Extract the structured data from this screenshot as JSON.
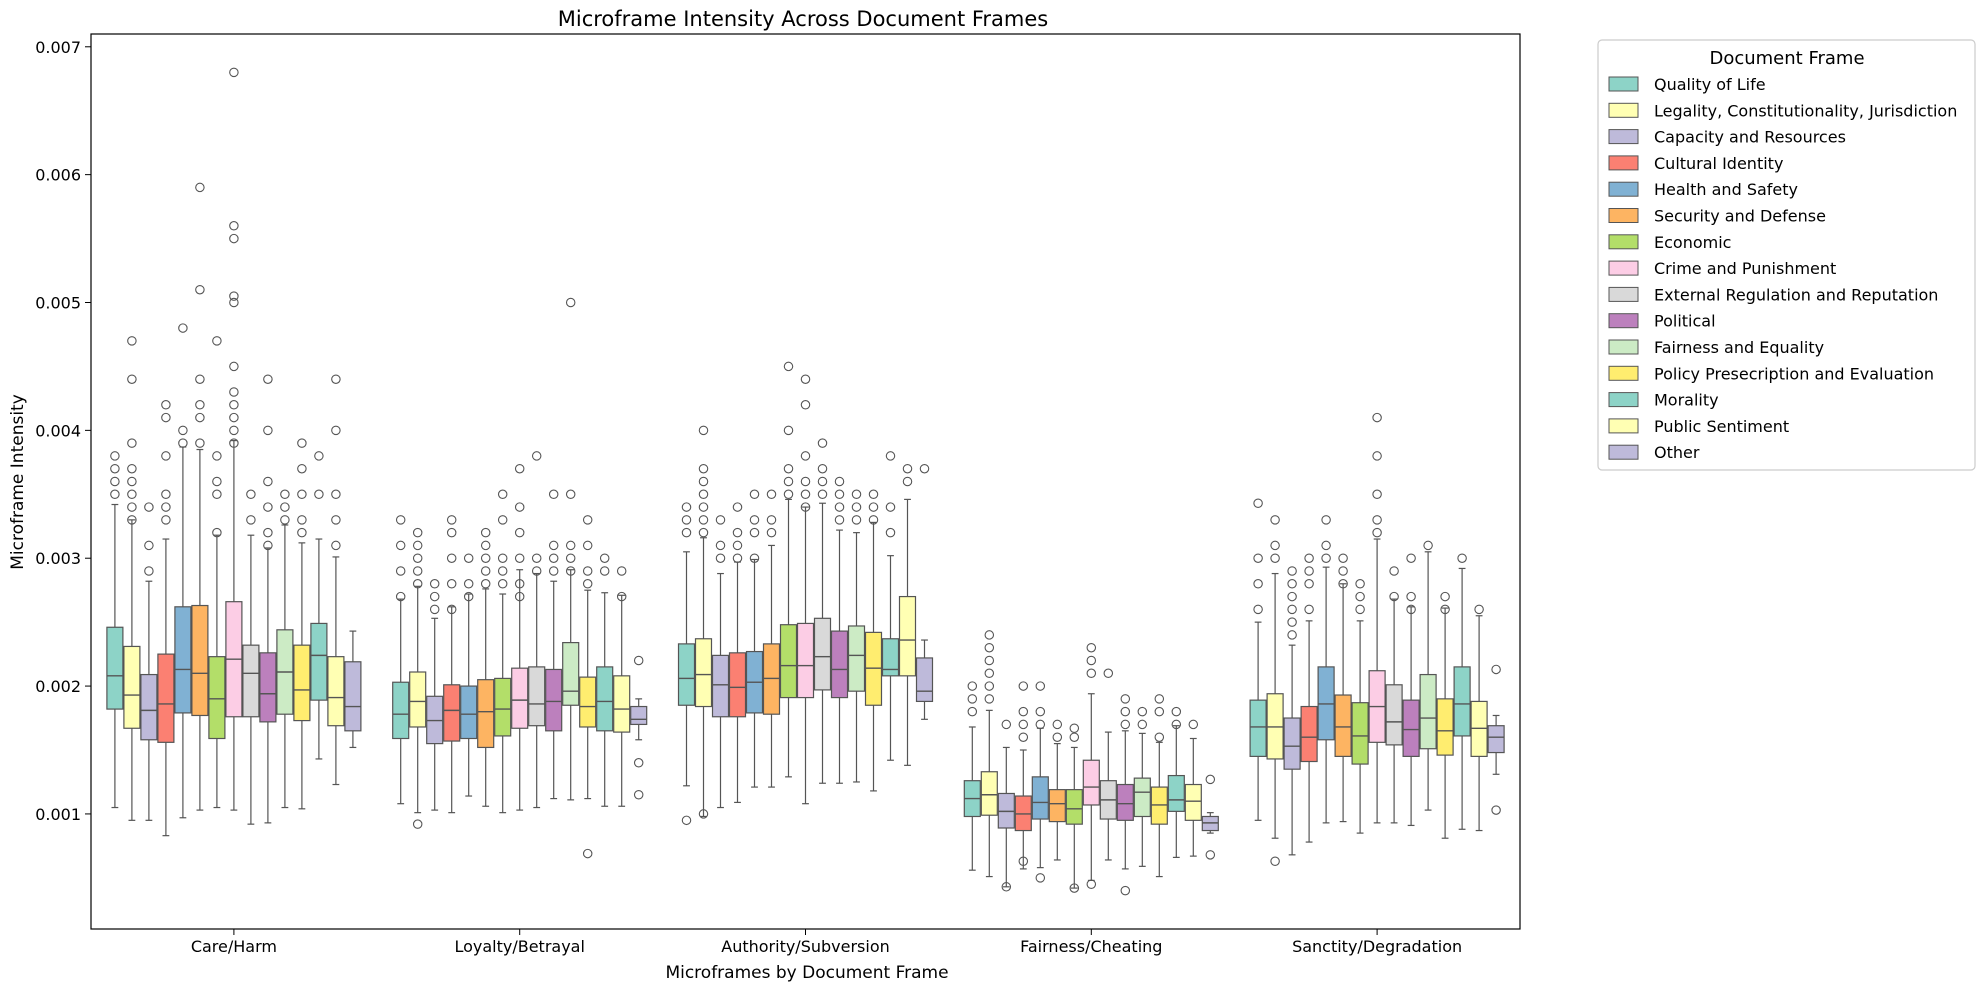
{
  "chart_data": {
    "type": "box",
    "title": "Microframe Intensity Across Document Frames",
    "xlabel": "Microframes by Document Frame",
    "ylabel": "Microframe Intensity",
    "ylim": [
      0.0001,
      0.0071
    ],
    "yticks": [
      0.001,
      0.002,
      0.003,
      0.004,
      0.005,
      0.006,
      0.007
    ],
    "ytick_labels": [
      "0.001",
      "0.002",
      "0.003",
      "0.004",
      "0.005",
      "0.006",
      "0.007"
    ],
    "grid": false,
    "legend": {
      "title": "Document Frame",
      "position": "outside-right"
    },
    "categories": [
      "Care/Harm",
      "Loyalty/Betrayal",
      "Authority/Subversion",
      "Fairness/Cheating",
      "Sanctity/Degradation"
    ],
    "series": [
      {
        "name": "Quality of Life",
        "color": "#8dd3c7",
        "stats": [
          [
            0.00105,
            0.00182,
            0.00208,
            0.00246,
            0.00342
          ],
          [
            0.00108,
            0.00159,
            0.00178,
            0.00203,
            0.00268
          ],
          [
            0.00122,
            0.00185,
            0.00206,
            0.00233,
            0.00305
          ],
          [
            0.00056,
            0.00098,
            0.00112,
            0.00126,
            0.00168
          ],
          [
            0.00095,
            0.00145,
            0.00168,
            0.00189,
            0.0025
          ]
        ],
        "outliers": [
          [
            0.0035,
            0.0036,
            0.0037,
            0.0038
          ],
          [
            0.0027,
            0.0029,
            0.0031,
            0.0033
          ],
          [
            0.00095,
            0.0032,
            0.0033,
            0.0034
          ],
          [
            0.0018,
            0.0019,
            0.002
          ],
          [
            0.0026,
            0.0028,
            0.003,
            0.00343
          ]
        ]
      },
      {
        "name": "Legality, Constitutionality, Jurisdiction",
        "color": "#ffffb3",
        "stats": [
          [
            0.00095,
            0.00167,
            0.00193,
            0.00231,
            0.0033
          ],
          [
            0.00101,
            0.00168,
            0.00188,
            0.00211,
            0.00278
          ],
          [
            0.00098,
            0.00184,
            0.00209,
            0.00237,
            0.00316
          ],
          [
            0.00051,
            0.00099,
            0.00115,
            0.00133,
            0.00181
          ],
          [
            0.00081,
            0.00143,
            0.00168,
            0.00194,
            0.00288
          ]
        ],
        "outliers": [
          [
            0.0033,
            0.0034,
            0.0035,
            0.0036,
            0.0037,
            0.0039,
            0.0044,
            0.0047
          ],
          [
            0.00092,
            0.0028,
            0.0029,
            0.003,
            0.0031,
            0.0032
          ],
          [
            0.001,
            0.0032,
            0.0033,
            0.0034,
            0.0035,
            0.0036,
            0.0037,
            0.004
          ],
          [
            0.0019,
            0.002,
            0.0021,
            0.0022,
            0.0023,
            0.0024
          ],
          [
            0.00063,
            0.003,
            0.0031,
            0.0033
          ]
        ]
      },
      {
        "name": "Capacity and Resources",
        "color": "#bebada",
        "stats": [
          [
            0.00095,
            0.00158,
            0.00181,
            0.00209,
            0.00282
          ],
          [
            0.00103,
            0.00155,
            0.00173,
            0.00192,
            0.00253
          ],
          [
            0.00105,
            0.00176,
            0.00201,
            0.00224,
            0.00288
          ],
          [
            0.00043,
            0.00089,
            0.00102,
            0.00116,
            0.00152
          ],
          [
            0.00068,
            0.00135,
            0.00153,
            0.00175,
            0.00232
          ]
        ],
        "outliers": [
          [
            0.0029,
            0.0031,
            0.0034
          ],
          [
            0.0026,
            0.0027,
            0.0028
          ],
          [
            0.003,
            0.0031,
            0.0033
          ],
          [
            0.00043,
            0.0017
          ],
          [
            0.0024,
            0.0025,
            0.0026,
            0.0027,
            0.0028,
            0.0029
          ]
        ]
      },
      {
        "name": "Cultural Identity",
        "color": "#fb8072",
        "stats": [
          [
            0.00083,
            0.00156,
            0.00186,
            0.00225,
            0.00315
          ],
          [
            0.00101,
            0.00157,
            0.00181,
            0.00201,
            0.00262
          ],
          [
            0.00109,
            0.00176,
            0.00199,
            0.00226,
            0.00297
          ],
          [
            0.00057,
            0.00087,
            0.001,
            0.00114,
            0.0015
          ],
          [
            0.00078,
            0.00141,
            0.0016,
            0.00184,
            0.00251
          ]
        ],
        "outliers": [
          [
            0.0033,
            0.0034,
            0.0035,
            0.0038,
            0.0041,
            0.0042
          ],
          [
            0.0026,
            0.0028,
            0.003,
            0.0032,
            0.0033
          ],
          [
            0.003,
            0.0031,
            0.0032,
            0.0034
          ],
          [
            0.00063,
            0.0016,
            0.0017,
            0.0018,
            0.002
          ],
          [
            0.0026,
            0.0028,
            0.0029,
            0.003
          ]
        ]
      },
      {
        "name": "Health and Safety",
        "color": "#80b1d3",
        "stats": [
          [
            0.00097,
            0.00179,
            0.00213,
            0.00262,
            0.00387
          ],
          [
            0.00114,
            0.00159,
            0.00178,
            0.002,
            0.00272
          ],
          [
            0.00121,
            0.00179,
            0.00203,
            0.00227,
            0.00299
          ],
          [
            0.00058,
            0.00096,
            0.00109,
            0.00129,
            0.00167
          ],
          [
            0.00093,
            0.00158,
            0.00186,
            0.00215,
            0.00293
          ]
        ],
        "outliers": [
          [
            0.0039,
            0.004,
            0.0048
          ],
          [
            0.0027,
            0.0028,
            0.003
          ],
          [
            0.003,
            0.0032,
            0.0033,
            0.0035
          ],
          [
            0.0005,
            0.0017,
            0.0018,
            0.002
          ],
          [
            0.003,
            0.0031,
            0.0033
          ]
        ]
      },
      {
        "name": "Security and Defense",
        "color": "#fdb462",
        "stats": [
          [
            0.00103,
            0.00177,
            0.0021,
            0.00263,
            0.00385
          ],
          [
            0.00106,
            0.00152,
            0.0018,
            0.00205,
            0.00276
          ],
          [
            0.00121,
            0.00178,
            0.00206,
            0.00233,
            0.0031
          ],
          [
            0.00064,
            0.00094,
            0.00108,
            0.00119,
            0.00155
          ],
          [
            0.00094,
            0.00145,
            0.00168,
            0.00193,
            0.0028
          ]
        ],
        "outliers": [
          [
            0.0039,
            0.0041,
            0.0042,
            0.0044,
            0.0051,
            0.0059
          ],
          [
            0.0028,
            0.0029,
            0.003,
            0.0031,
            0.0032
          ],
          [
            0.0032,
            0.0033,
            0.0035
          ],
          [
            0.0016,
            0.0017
          ],
          [
            0.0028,
            0.0029,
            0.003
          ]
        ]
      },
      {
        "name": "Economic",
        "color": "#b3de69",
        "stats": [
          [
            0.00105,
            0.00159,
            0.0019,
            0.00223,
            0.00318
          ],
          [
            0.00101,
            0.00161,
            0.00182,
            0.00206,
            0.00272
          ],
          [
            0.00129,
            0.00191,
            0.00216,
            0.00248,
            0.00346
          ],
          [
            0.00042,
            0.00092,
            0.00104,
            0.00119,
            0.00152
          ],
          [
            0.00085,
            0.00139,
            0.00161,
            0.00187,
            0.00251
          ]
        ],
        "outliers": [
          [
            0.0032,
            0.0035,
            0.0036,
            0.0038,
            0.0047
          ],
          [
            0.0028,
            0.0029,
            0.003,
            0.0033,
            0.0035
          ],
          [
            0.0035,
            0.0036,
            0.0037,
            0.004,
            0.0045
          ],
          [
            0.00042,
            0.0016,
            0.00167
          ],
          [
            0.0026,
            0.0027,
            0.0028
          ]
        ]
      },
      {
        "name": "Crime and Punishment",
        "color": "#fccde5",
        "stats": [
          [
            0.00103,
            0.00176,
            0.00221,
            0.00266,
            0.00392
          ],
          [
            0.00103,
            0.00167,
            0.00189,
            0.00214,
            0.00291
          ],
          [
            0.00108,
            0.00191,
            0.00216,
            0.00249,
            0.0034
          ],
          [
            0.00048,
            0.00107,
            0.00121,
            0.00142,
            0.00194
          ],
          [
            0.00093,
            0.00156,
            0.00184,
            0.00212,
            0.00315
          ]
        ],
        "outliers": [
          [
            0.0039,
            0.004,
            0.0041,
            0.0042,
            0.0043,
            0.0045,
            0.005,
            0.00505,
            0.0055,
            0.0056,
            0.0068
          ],
          [
            0.0027,
            0.0028,
            0.003,
            0.0032,
            0.0034,
            0.0037
          ],
          [
            0.0034,
            0.0035,
            0.0036,
            0.0038,
            0.0042,
            0.0044
          ],
          [
            0.00045,
            0.0021,
            0.0022,
            0.0023
          ],
          [
            0.0032,
            0.0033,
            0.0035,
            0.0038,
            0.0041
          ]
        ]
      },
      {
        "name": "External Regulation and Reputation",
        "color": "#d9d9d9",
        "stats": [
          [
            0.00092,
            0.00176,
            0.0021,
            0.00232,
            0.00318
          ],
          [
            0.00105,
            0.00169,
            0.00186,
            0.00215,
            0.00288
          ],
          [
            0.00124,
            0.00197,
            0.00223,
            0.00253,
            0.00343
          ],
          [
            0.00064,
            0.00096,
            0.00111,
            0.00126,
            0.00164
          ],
          [
            0.00093,
            0.00154,
            0.00172,
            0.00201,
            0.00268
          ]
        ],
        "outliers": [
          [
            0.0033,
            0.0035
          ],
          [
            0.0029,
            0.003,
            0.0038
          ],
          [
            0.0035,
            0.0036,
            0.0037,
            0.0039
          ],
          [
            0.0021
          ],
          [
            0.0027,
            0.0029
          ]
        ]
      },
      {
        "name": "Political",
        "color": "#bc80bd",
        "stats": [
          [
            0.00093,
            0.00172,
            0.00194,
            0.00226,
            0.00308
          ],
          [
            0.00112,
            0.00165,
            0.00188,
            0.00213,
            0.00282
          ],
          [
            0.00124,
            0.00191,
            0.00213,
            0.00243,
            0.00322
          ],
          [
            0.00057,
            0.00095,
            0.00108,
            0.00123,
            0.00165
          ],
          [
            0.00091,
            0.00145,
            0.00166,
            0.00189,
            0.00262
          ]
        ],
        "outliers": [
          [
            0.0031,
            0.0032,
            0.0034,
            0.0036,
            0.004,
            0.0044
          ],
          [
            0.0029,
            0.003,
            0.0031,
            0.0035
          ],
          [
            0.0033,
            0.0034,
            0.0035,
            0.0036
          ],
          [
            0.0004,
            0.0017,
            0.0018,
            0.0019
          ],
          [
            0.0026,
            0.0027,
            0.003
          ]
        ]
      },
      {
        "name": "Fairness and Equality",
        "color": "#ccebc5",
        "stats": [
          [
            0.00105,
            0.00178,
            0.00211,
            0.00244,
            0.00326
          ],
          [
            0.00111,
            0.00185,
            0.00196,
            0.00234,
            0.00291
          ],
          [
            0.00125,
            0.00196,
            0.00224,
            0.00247,
            0.0032
          ],
          [
            0.00059,
            0.00098,
            0.00117,
            0.00128,
            0.00163
          ],
          [
            0.00103,
            0.00151,
            0.00175,
            0.00209,
            0.00305
          ]
        ],
        "outliers": [
          [
            0.0033,
            0.0034,
            0.0035
          ],
          [
            0.0029,
            0.003,
            0.0031,
            0.0035,
            0.005
          ],
          [
            0.0033,
            0.0034,
            0.0035
          ],
          [
            0.0017,
            0.0018
          ],
          [
            0.0031
          ]
        ]
      },
      {
        "name": "Policy Presecription and Evaluation",
        "color": "#ffed6f",
        "stats": [
          [
            0.00104,
            0.00173,
            0.00197,
            0.00232,
            0.00312
          ],
          [
            0.00112,
            0.00168,
            0.00184,
            0.00207,
            0.00275
          ],
          [
            0.00118,
            0.00185,
            0.00214,
            0.00242,
            0.00328
          ],
          [
            0.00051,
            0.00092,
            0.00107,
            0.00121,
            0.00156
          ],
          [
            0.00081,
            0.00146,
            0.00165,
            0.0019,
            0.00261
          ]
        ],
        "outliers": [
          [
            0.0032,
            0.0033,
            0.0035,
            0.0037,
            0.0039
          ],
          [
            0.00069,
            0.0028,
            0.0029,
            0.0031,
            0.0033
          ],
          [
            0.0033,
            0.0034,
            0.0035
          ],
          [
            0.0016,
            0.0018,
            0.0019
          ],
          [
            0.0026,
            0.0027
          ]
        ]
      },
      {
        "name": "Morality",
        "color": "#8dd3c7",
        "stats": [
          [
            0.00143,
            0.00189,
            0.00224,
            0.00249,
            0.00315
          ],
          [
            0.00106,
            0.00165,
            0.00188,
            0.00215,
            0.00273
          ],
          [
            0.00142,
            0.00208,
            0.00213,
            0.00237,
            0.00302
          ],
          [
            0.00066,
            0.00102,
            0.00111,
            0.0013,
            0.00169
          ],
          [
            0.00088,
            0.00161,
            0.00186,
            0.00215,
            0.00292
          ]
        ],
        "outliers": [
          [
            0.0035,
            0.0038
          ],
          [
            0.0029,
            0.003
          ],
          [
            0.0032,
            0.0034,
            0.0038
          ],
          [
            0.0017,
            0.0018
          ],
          [
            0.003
          ]
        ]
      },
      {
        "name": "Public Sentiment",
        "color": "#ffffb3",
        "stats": [
          [
            0.00123,
            0.00169,
            0.00191,
            0.00223,
            0.00301
          ],
          [
            0.00106,
            0.00164,
            0.00182,
            0.00208,
            0.00271
          ],
          [
            0.00138,
            0.00208,
            0.00236,
            0.0027,
            0.00346
          ],
          [
            0.00067,
            0.00095,
            0.0011,
            0.00123,
            0.00159
          ],
          [
            0.00087,
            0.00145,
            0.00167,
            0.00188,
            0.00255
          ]
        ],
        "outliers": [
          [
            0.0031,
            0.0033,
            0.0035,
            0.004,
            0.0044
          ],
          [
            0.0027,
            0.0029
          ],
          [
            0.0036,
            0.0037
          ],
          [
            0.0017
          ],
          [
            0.0026
          ]
        ]
      },
      {
        "name": "Other",
        "color": "#bebada",
        "stats": [
          [
            0.00152,
            0.00165,
            0.00184,
            0.00219,
            0.00243
          ],
          [
            0.00158,
            0.0017,
            0.00174,
            0.00184,
            0.0019
          ],
          [
            0.00174,
            0.00188,
            0.00196,
            0.00222,
            0.00236
          ],
          [
            0.00085,
            0.00087,
            0.00093,
            0.00098,
            0.00101
          ],
          [
            0.00131,
            0.00148,
            0.0016,
            0.00169,
            0.00177
          ]
        ],
        "outliers": [
          [],
          [
            0.00115,
            0.0014,
            0.0022
          ],
          [
            0.0037
          ],
          [
            0.00068,
            0.00127
          ],
          [
            0.00103,
            0.00213
          ]
        ]
      }
    ]
  }
}
